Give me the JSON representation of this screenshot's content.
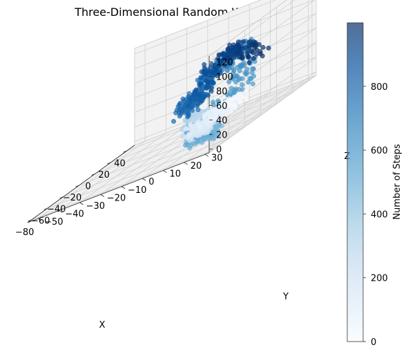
{
  "chart_data": {
    "type": "scatter",
    "projection": "3d",
    "title": "Three-Dimensional Random Walk",
    "xlabel": "X",
    "ylabel": "Y",
    "zlabel": "Z",
    "xlim": [
      -85,
      50
    ],
    "ylim": [
      -55,
      32
    ],
    "zlim": [
      -5,
      128
    ],
    "x_ticks": [
      "−80",
      "−60",
      "−40",
      "−20",
      "0",
      "20",
      "40"
    ],
    "x_tick_values": [
      -80,
      -60,
      -40,
      -20,
      0,
      20,
      40
    ],
    "y_ticks": [
      "−50",
      "−40",
      "−30",
      "−20",
      "−10",
      "0",
      "10",
      "20",
      "30"
    ],
    "y_tick_values": [
      -50,
      -40,
      -30,
      -20,
      -10,
      0,
      10,
      20,
      30
    ],
    "z_ticks": [
      "0",
      "20",
      "40",
      "60",
      "80",
      "100",
      "120"
    ],
    "z_tick_values": [
      0,
      20,
      40,
      60,
      80,
      100,
      120
    ],
    "grid": true,
    "colormap": "Blues",
    "colormap_colors": [
      "#f7fbff",
      "#deebf7",
      "#c6dbef",
      "#9ecae1",
      "#6baed6",
      "#4292c6",
      "#2171b5",
      "#08519c",
      "#08306b"
    ],
    "point_alpha": 0.7,
    "colorbar": {
      "label": "Number of Steps",
      "min": 0,
      "max": 999,
      "ticks": [
        "0",
        "200",
        "400",
        "600",
        "800"
      ],
      "tick_values": [
        0,
        200,
        400,
        600,
        800
      ]
    },
    "series": [
      {
        "color_by": "step index",
        "steps": 1000,
        "path_waypoints": {
          "step": [
            0,
            120,
            200,
            280,
            360,
            420,
            480,
            540,
            600,
            660,
            720,
            780,
            840,
            900,
            960,
            999
          ],
          "x": [
            8,
            0,
            -25,
            -55,
            -72,
            -60,
            -50,
            -35,
            -25,
            0,
            5,
            5,
            10,
            20,
            25,
            35
          ],
          "y": [
            10,
            -5,
            5,
            15,
            20,
            22,
            18,
            5,
            25,
            15,
            0,
            -15,
            -10,
            -5,
            5,
            10
          ],
          "z": [
            20,
            5,
            5,
            35,
            45,
            20,
            5,
            10,
            50,
            95,
            70,
            30,
            45,
            75,
            85,
            60
          ]
        }
      }
    ]
  }
}
